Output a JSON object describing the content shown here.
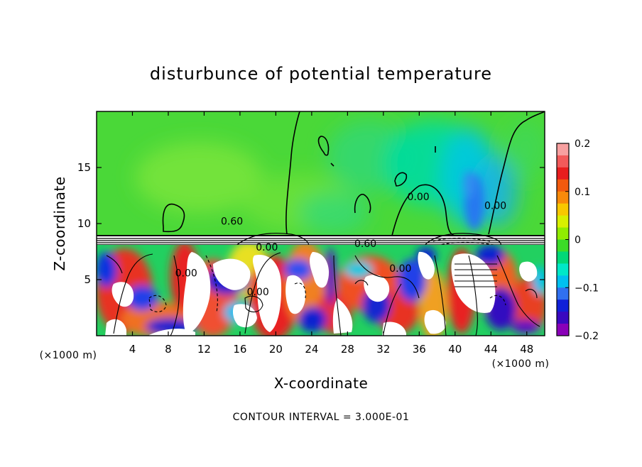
{
  "chart_data": {
    "type": "heatmap",
    "title": "disturbunce of potential temperature",
    "xlabel": "X-coordinate",
    "ylabel": "Z-coordinate",
    "x_unit": "(×1000 m)",
    "y_unit": "(×1000 m)",
    "footnote": "CONTOUR INTERVAL = 3.000E-01",
    "xlim": [
      0,
      50
    ],
    "ylim": [
      0,
      20
    ],
    "xticks": [
      4,
      8,
      12,
      16,
      20,
      24,
      28,
      32,
      36,
      40,
      44,
      48
    ],
    "yticks": [
      5,
      10,
      15
    ],
    "colorbar": {
      "min": -0.2,
      "max": 0.2,
      "ticks": [
        0.2,
        0.1,
        0,
        -0.1,
        -0.2
      ],
      "tick_labels": [
        "0.2",
        "0.1",
        "0",
        "−0.1",
        "−0.2"
      ],
      "colors": [
        "#f7a0a0",
        "#f25a5a",
        "#e81e1e",
        "#f25a0e",
        "#f88a0a",
        "#f8c800",
        "#d8f000",
        "#90ec00",
        "#3cdc28",
        "#00d878",
        "#00e8c8",
        "#00c0f0",
        "#3070f0",
        "#1020d8",
        "#3a08c0",
        "#8a00b8"
      ]
    },
    "contour_labels": [
      {
        "text": "0.60",
        "x": 15.1,
        "y": 9.9
      },
      {
        "text": "0.00",
        "x": 19.0,
        "y": 7.6
      },
      {
        "text": "0.60",
        "x": 30.0,
        "y": 7.9
      },
      {
        "text": "0.00",
        "x": 33.9,
        "y": 5.7
      },
      {
        "text": "0.00",
        "x": 35.9,
        "y": 12.1
      },
      {
        "text": "0.00",
        "x": 44.5,
        "y": 11.3
      },
      {
        "text": "0.00",
        "x": 10.0,
        "y": 5.3
      },
      {
        "text": "0.00",
        "x": 18.0,
        "y": 3.6
      }
    ]
  }
}
